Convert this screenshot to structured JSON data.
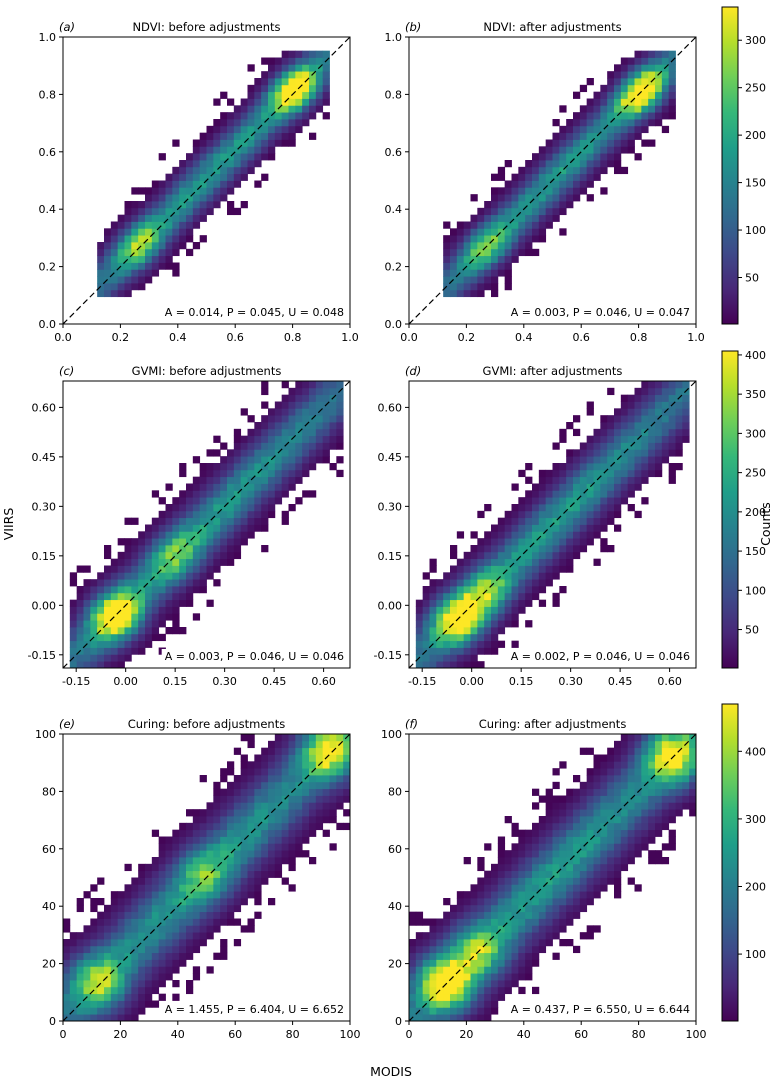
{
  "figure": {
    "shared_ylabel": "VIIRS",
    "shared_xlabel": "MODIS",
    "colorbar_label": "Counts"
  },
  "colors": {
    "viridis": [
      "#440154",
      "#482878",
      "#3e4989",
      "#31688e",
      "#26828e",
      "#1f9e89",
      "#35b779",
      "#6ece58",
      "#b5de2b",
      "#fde725"
    ]
  },
  "chart_data": [
    {
      "type": "heatmap",
      "id": "a",
      "letter": "(a)",
      "title": "NDVI: before adjustments",
      "xlim": [
        0,
        1
      ],
      "ylim": [
        0,
        1
      ],
      "xticks": [
        0,
        0.2,
        0.4,
        0.6,
        0.8,
        1.0
      ],
      "xtick_labels": [
        "0.0",
        "0.2",
        "0.4",
        "0.6",
        "0.8",
        "1.0"
      ],
      "yticks": [
        0,
        0.2,
        0.4,
        0.6,
        0.8,
        1.0
      ],
      "ytick_labels": [
        "0.0",
        "0.2",
        "0.4",
        "0.6",
        "0.8",
        "1.0"
      ],
      "stats_text": "A = 0.014, P = 0.045, U = 0.048",
      "data_range": [
        0.12,
        0.93
      ],
      "spread": 0.055,
      "bias": 0.01,
      "peaks": [
        {
          "at": 0.81,
          "weight": 1.0
        },
        {
          "at": 0.27,
          "weight": 0.55
        }
      ],
      "colorbar": {
        "min": 1,
        "max": 335,
        "ticks": [
          50,
          100,
          150,
          200,
          250,
          300
        ]
      },
      "colorbar_shared_with": "b"
    },
    {
      "type": "heatmap",
      "id": "b",
      "letter": "(b)",
      "title": "NDVI: after adjustments",
      "xlim": [
        0,
        1
      ],
      "ylim": [
        0,
        1
      ],
      "xticks": [
        0,
        0.2,
        0.4,
        0.6,
        0.8,
        1.0
      ],
      "xtick_labels": [
        "0.0",
        "0.2",
        "0.4",
        "0.6",
        "0.8",
        "1.0"
      ],
      "yticks": [
        0,
        0.2,
        0.4,
        0.6,
        0.8,
        1.0
      ],
      "ytick_labels": [
        "0.0",
        "0.2",
        "0.4",
        "0.6",
        "0.8",
        "1.0"
      ],
      "stats_text": "A = 0.003, P = 0.046, U = 0.047",
      "data_range": [
        0.12,
        0.93
      ],
      "spread": 0.055,
      "bias": 0.0,
      "peaks": [
        {
          "at": 0.81,
          "weight": 1.0
        },
        {
          "at": 0.27,
          "weight": 0.45
        }
      ],
      "colorbar": {
        "min": 1,
        "max": 335,
        "ticks": [
          50,
          100,
          150,
          200,
          250,
          300
        ]
      }
    },
    {
      "type": "heatmap",
      "id": "c",
      "letter": "(c)",
      "title": "GVMI: before adjustments",
      "xlim": [
        -0.19,
        0.68
      ],
      "ylim": [
        -0.19,
        0.68
      ],
      "xticks": [
        -0.15,
        0,
        0.15,
        0.3,
        0.45,
        0.6
      ],
      "xtick_labels": [
        "-0.15",
        "0.00",
        "0.15",
        "0.30",
        "0.45",
        "0.60"
      ],
      "yticks": [
        -0.15,
        0,
        0.15,
        0.3,
        0.45,
        0.6
      ],
      "ytick_labels": [
        "-0.15",
        "0.00",
        "0.15",
        "0.30",
        "0.45",
        "0.60"
      ],
      "stats_text": "A = 0.003, P = 0.046, U = 0.046",
      "data_range": [
        -0.17,
        0.66
      ],
      "spread": 0.06,
      "bias": 0.0,
      "peaks": [
        {
          "at": -0.03,
          "weight": 1.0
        },
        {
          "at": 0.15,
          "weight": 0.35
        }
      ],
      "colorbar": {
        "min": 1,
        "max": 405,
        "ticks": [
          50,
          100,
          150,
          200,
          250,
          300,
          350,
          400
        ]
      },
      "colorbar_shared_with": "d"
    },
    {
      "type": "heatmap",
      "id": "d",
      "letter": "(d)",
      "title": "GVMI: after adjustments",
      "xlim": [
        -0.19,
        0.68
      ],
      "ylim": [
        -0.19,
        0.68
      ],
      "xticks": [
        -0.15,
        0,
        0.15,
        0.3,
        0.45,
        0.6
      ],
      "xtick_labels": [
        "-0.15",
        "0.00",
        "0.15",
        "0.30",
        "0.45",
        "0.60"
      ],
      "yticks": [
        -0.15,
        0,
        0.15,
        0.3,
        0.45,
        0.6
      ],
      "ytick_labels": [
        "-0.15",
        "0.00",
        "0.15",
        "0.30",
        "0.45",
        "0.60"
      ],
      "stats_text": "A = 0.002, P = 0.046, U = 0.046",
      "data_range": [
        -0.17,
        0.66
      ],
      "spread": 0.06,
      "bias": 0.0,
      "peaks": [
        {
          "at": -0.04,
          "weight": 1.0
        },
        {
          "at": 0.04,
          "weight": 0.45
        }
      ],
      "colorbar": {
        "min": 1,
        "max": 405,
        "ticks": [
          50,
          100,
          150,
          200,
          250,
          300,
          350,
          400
        ]
      }
    },
    {
      "type": "heatmap",
      "id": "e",
      "letter": "(e)",
      "title": "Curing: before adjustments",
      "xlim": [
        0,
        100
      ],
      "ylim": [
        0,
        100
      ],
      "xticks": [
        0,
        20,
        40,
        60,
        80,
        100
      ],
      "xtick_labels": [
        "0",
        "20",
        "40",
        "60",
        "80",
        "100"
      ],
      "yticks": [
        0,
        20,
        40,
        60,
        80,
        100
      ],
      "ytick_labels": [
        "0",
        "20",
        "40",
        "60",
        "80",
        "100"
      ],
      "stats_text": "A = 1.455, P = 6.404, U = 6.652",
      "data_range": [
        0,
        100
      ],
      "spread": 8.5,
      "bias": 1.4,
      "peaks": [
        {
          "at": 13,
          "weight": 0.6
        },
        {
          "at": 93,
          "weight": 0.75
        },
        {
          "at": 50,
          "weight": 0.3
        }
      ],
      "colorbar": {
        "min": 1,
        "max": 470,
        "ticks": [
          100,
          200,
          300,
          400
        ]
      },
      "colorbar_shared_with": "f"
    },
    {
      "type": "heatmap",
      "id": "f",
      "letter": "(f)",
      "title": "Curing: after adjustments",
      "xlim": [
        0,
        100
      ],
      "ylim": [
        0,
        100
      ],
      "xticks": [
        0,
        20,
        40,
        60,
        80,
        100
      ],
      "xtick_labels": [
        "0",
        "20",
        "40",
        "60",
        "80",
        "100"
      ],
      "yticks": [
        0,
        20,
        40,
        60,
        80,
        100
      ],
      "ytick_labels": [
        "0",
        "20",
        "40",
        "60",
        "80",
        "100"
      ],
      "stats_text": "A = 0.437, P = 6.550, U = 6.644",
      "data_range": [
        0,
        100
      ],
      "spread": 8.5,
      "bias": 0.4,
      "peaks": [
        {
          "at": 13,
          "weight": 1.0
        },
        {
          "at": 92,
          "weight": 0.85
        },
        {
          "at": 24,
          "weight": 0.5
        }
      ],
      "colorbar": {
        "min": 1,
        "max": 470,
        "ticks": [
          100,
          200,
          300,
          400
        ]
      }
    }
  ]
}
